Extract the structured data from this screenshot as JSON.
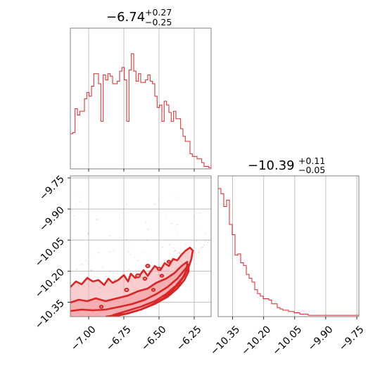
{
  "chart_data": {
    "type": "corner",
    "line_color": "#d62728",
    "fill_color": "#f4a6aa",
    "panels": [
      {
        "id": "hist_x",
        "type": "histogram",
        "title": {
          "median": "−6.74",
          "plus": "+0.27",
          "minus": "−0.25"
        },
        "xlim": [
          -7.13,
          -6.13
        ],
        "xticks": [
          -7.0,
          -6.75,
          -6.5,
          -6.25
        ],
        "counts": [
          0.28,
          0.29,
          0.48,
          0.43,
          0.46,
          0.46,
          0.56,
          0.61,
          0.58,
          0.66,
          0.76,
          0.76,
          0.68,
          0.38,
          0.75,
          0.71,
          0.76,
          0.74,
          0.68,
          0.68,
          0.7,
          0.78,
          0.81,
          0.71,
          0.38,
          0.79,
          0.92,
          0.78,
          0.7,
          0.76,
          0.69,
          0.69,
          0.71,
          0.75,
          0.7,
          0.68,
          0.58,
          0.49,
          0.51,
          0.38,
          0.54,
          0.51,
          0.45,
          0.38,
          0.46,
          0.4,
          0.4,
          0.32,
          0.26,
          0.22,
          0.22,
          0.12,
          0.1,
          0.1,
          0.08,
          0.08,
          0.05,
          0.02,
          0.02,
          0.01
        ]
      },
      {
        "id": "hist_y",
        "type": "histogram",
        "title": {
          "median": "−10.39",
          "plus": "+0.11",
          "minus": "−0.05"
        },
        "xlim": [
          -10.42,
          -9.74
        ],
        "xticks": [
          -10.35,
          -10.2,
          -10.05,
          -9.9,
          -9.75
        ],
        "xticklabels": [
          "−10.35",
          "−10.20",
          "−10.05",
          "−9.90",
          "−9.75"
        ],
        "counts": [
          1.0,
          0.96,
          0.86,
          0.91,
          0.72,
          0.64,
          0.48,
          0.49,
          0.42,
          0.4,
          0.33,
          0.3,
          0.27,
          0.21,
          0.18,
          0.16,
          0.14,
          0.14,
          0.13,
          0.1,
          0.1,
          0.07,
          0.06,
          0.05,
          0.05,
          0.04,
          0.04,
          0.03,
          0.03,
          0.02,
          0.02,
          0.02,
          0.01,
          0.01,
          0.01,
          0.01,
          0.01,
          0.01,
          0.01,
          0.01,
          0.01,
          0.01,
          0.01,
          0.01,
          0.01,
          0.01,
          0.01,
          0.01,
          0.01,
          0.01
        ]
      },
      {
        "id": "joint",
        "type": "contour",
        "xlim": [
          -7.13,
          -6.13
        ],
        "ylim": [
          -10.42,
          -9.74
        ],
        "xticks": [
          -7.0,
          -6.75,
          -6.5,
          -6.25
        ],
        "xticklabels": [
          "−7.00",
          "−6.75",
          "−6.50",
          "−6.25"
        ],
        "yticks": [
          -9.75,
          -9.9,
          -10.05,
          -10.2,
          -10.35
        ],
        "yticklabels": [
          "−9.75",
          "−9.90",
          "−10.05",
          "−10.20",
          "−10.35"
        ]
      }
    ]
  }
}
